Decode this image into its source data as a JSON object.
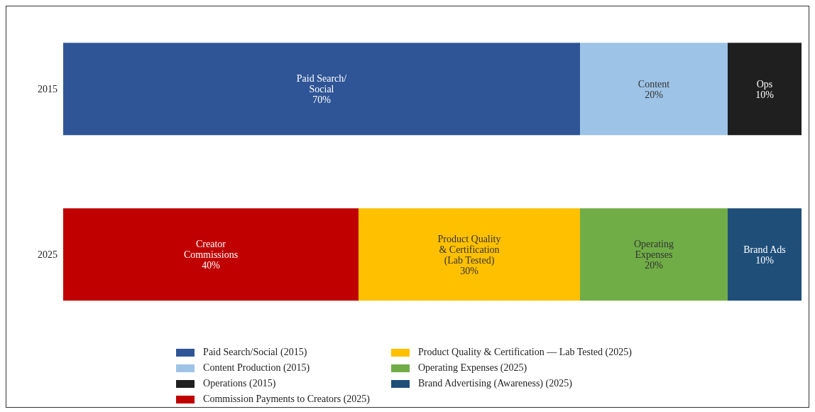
{
  "chart_data": {
    "type": "bar",
    "orientation": "horizontal",
    "stacked": true,
    "categories": [
      "2015",
      "2025"
    ],
    "xlim": [
      0,
      100
    ],
    "tick_labels": "y",
    "legend": "bottom",
    "grid": false,
    "series": [
      {
        "name": "Paid Search/Social (2015)",
        "color": "#2f5597",
        "values": [
          70,
          null
        ],
        "value_labels": [
          "Paid Search/\nSocial\n70%",
          null
        ]
      },
      {
        "name": "Content Production (2015)",
        "color": "#9dc3e6",
        "values": [
          20,
          null
        ],
        "value_labels": [
          "Content\n20%",
          null
        ]
      },
      {
        "name": "Operations (2015)",
        "color": "#1f1f1f",
        "values": [
          10,
          null
        ],
        "value_labels": [
          "Ops\n10%",
          null
        ]
      },
      {
        "name": "Commission Payments to Creators (2025)",
        "color": "#c00000",
        "values": [
          null,
          40
        ],
        "value_labels": [
          null,
          "Creator\nCommissions\n40%"
        ]
      },
      {
        "name": "Product Quality & Certification — Lab Tested (2025)",
        "color": "#ffc000",
        "values": [
          null,
          30
        ],
        "value_labels": [
          null,
          "Product Quality\n& Certification\n(Lab Tested)\n30%"
        ]
      },
      {
        "name": "Operating Expenses (2025)",
        "color": "#70ad47",
        "values": [
          null,
          20
        ],
        "value_labels": [
          null,
          "Operating\nExpenses\n20%"
        ]
      },
      {
        "name": "Brand Advertising (Awareness) (2025)",
        "color": "#1f4e79",
        "values": [
          null,
          10
        ],
        "value_labels": [
          null,
          "Brand Ads\n10%"
        ]
      }
    ]
  }
}
